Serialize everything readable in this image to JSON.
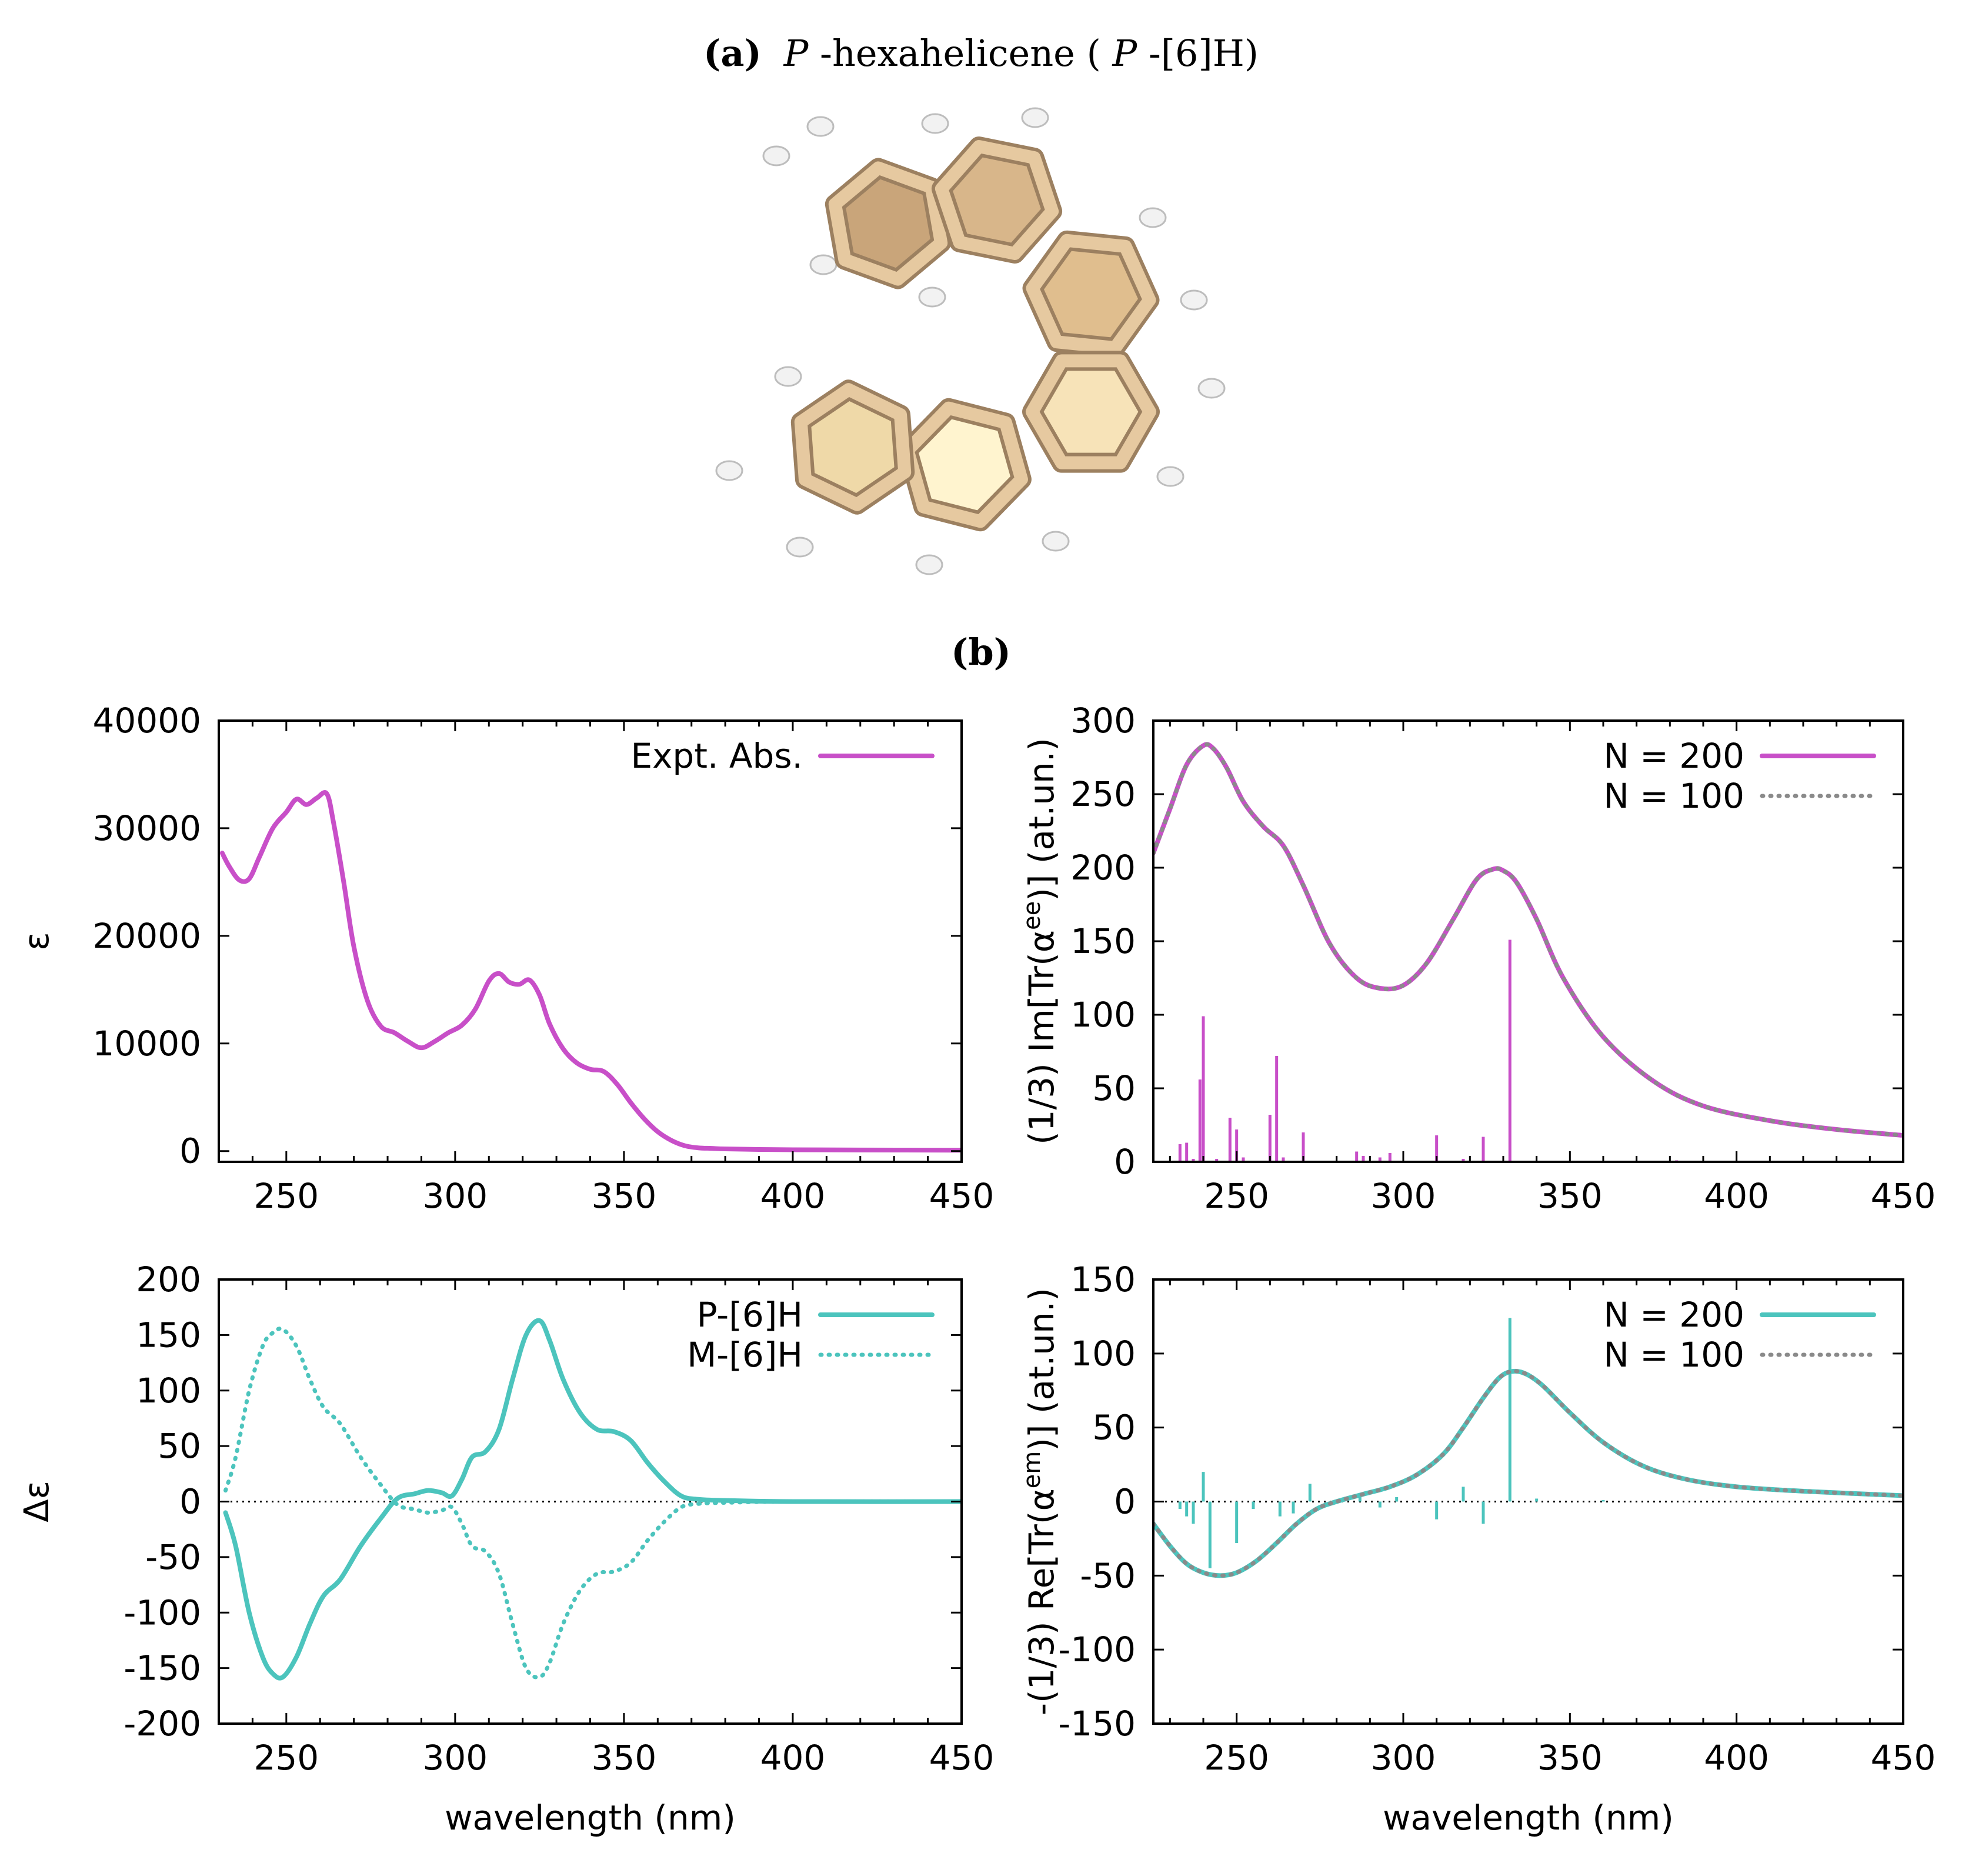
{
  "panel_a": {
    "label": "(a)",
    "title_italic_1": "P",
    "title_mid": "-hexahelicene (",
    "title_italic_2": "P",
    "title_end": "-[6]H)"
  },
  "panel_b": {
    "label": "(b)"
  },
  "colors": {
    "magenta": "#c84fc8",
    "teal": "#4cc4bd",
    "gray": "#8a8a8a",
    "molecule_carbon": "#e6c9a0",
    "molecule_hydrogen": "#f2f2f2"
  },
  "chart_data": [
    {
      "id": "exp-abs",
      "type": "line",
      "title": "",
      "xlabel": "",
      "ylabel": "ε",
      "xlim": [
        230,
        450
      ],
      "ylim": [
        -1000,
        40000
      ],
      "xticks": [
        250,
        300,
        350,
        400,
        450
      ],
      "yticks": [
        0,
        10000,
        20000,
        30000,
        40000
      ],
      "legend_position": "top-right",
      "series": [
        {
          "name": "Expt. Abs.",
          "style": "solid",
          "color": "magenta",
          "x": [
            231,
            233,
            236,
            239,
            242,
            246,
            250,
            253,
            256,
            259,
            262,
            264,
            267,
            270,
            274,
            278,
            282,
            286,
            290,
            294,
            298,
            302,
            306,
            310,
            313,
            316,
            319,
            322,
            325,
            328,
            332,
            336,
            340,
            344,
            348,
            352,
            356,
            360,
            364,
            368,
            372,
            376,
            380,
            390,
            400,
            420,
            450
          ],
          "values": [
            27700,
            26500,
            25200,
            25300,
            27300,
            30000,
            31500,
            32700,
            32200,
            32800,
            33200,
            30500,
            25000,
            19000,
            14000,
            11600,
            11000,
            10200,
            9600,
            10200,
            11000,
            11700,
            13200,
            15800,
            16500,
            15700,
            15500,
            15900,
            14500,
            11800,
            9500,
            8200,
            7600,
            7400,
            6200,
            4500,
            3000,
            1800,
            1000,
            500,
            300,
            250,
            200,
            150,
            120,
            100,
            80
          ]
        }
      ],
      "sticks": []
    },
    {
      "id": "calc-abs",
      "type": "line",
      "title": "",
      "xlabel": "",
      "ylabel": "(1/3) Im[Tr(α^ee)] (at.un.)",
      "xlim": [
        225,
        450
      ],
      "ylim": [
        0,
        300
      ],
      "xticks": [
        250,
        300,
        350,
        400,
        450
      ],
      "yticks": [
        0,
        50,
        100,
        150,
        200,
        250,
        300
      ],
      "legend_position": "top-right",
      "series": [
        {
          "name": "N = 200",
          "style": "solid",
          "color": "magenta",
          "x": [
            225,
            230,
            235,
            240,
            243,
            247,
            252,
            258,
            264,
            270,
            278,
            286,
            293,
            300,
            307,
            315,
            322,
            327,
            330,
            334,
            340,
            348,
            360,
            375,
            390,
            410,
            430,
            450
          ],
          "values": [
            210,
            240,
            270,
            283,
            281,
            268,
            245,
            228,
            215,
            188,
            148,
            125,
            118,
            120,
            135,
            165,
            192,
            199,
            198,
            190,
            165,
            125,
            85,
            55,
            38,
            28,
            22,
            18
          ]
        },
        {
          "name": "N = 100",
          "style": "dotted",
          "color": "gray",
          "x": [
            225,
            230,
            235,
            240,
            243,
            247,
            252,
            258,
            264,
            270,
            278,
            286,
            293,
            300,
            307,
            315,
            322,
            327,
            330,
            334,
            340,
            348,
            360,
            375,
            390,
            410,
            430,
            450
          ],
          "values": [
            210,
            240,
            270,
            283,
            281,
            268,
            245,
            228,
            215,
            188,
            148,
            125,
            118,
            120,
            135,
            165,
            192,
            199,
            198,
            190,
            165,
            125,
            85,
            55,
            38,
            28,
            22,
            18
          ]
        }
      ],
      "sticks": {
        "color": "magenta",
        "x": [
          233,
          235,
          237,
          239,
          240,
          244,
          248,
          250,
          252,
          260,
          262,
          264,
          270,
          286,
          288,
          293,
          296,
          310,
          318,
          324,
          332,
          382
        ],
        "values": [
          12,
          13,
          2,
          56,
          99,
          2,
          30,
          22,
          3,
          32,
          72,
          3,
          20,
          7,
          4,
          3,
          6,
          18,
          2,
          17,
          151,
          1
        ]
      }
    },
    {
      "id": "exp-cd",
      "type": "line",
      "title": "",
      "xlabel": "wavelength (nm)",
      "ylabel": "Δε",
      "xlim": [
        230,
        450
      ],
      "ylim": [
        -200,
        200
      ],
      "xticks": [
        250,
        300,
        350,
        400,
        450
      ],
      "yticks": [
        -200,
        -150,
        -100,
        -50,
        0,
        50,
        100,
        150,
        200
      ],
      "zero_line": true,
      "legend_position": "top-right",
      "series": [
        {
          "name": "P-[6]H",
          "style": "solid",
          "color": "teal",
          "x": [
            232,
            235,
            239,
            243,
            246,
            249,
            253,
            257,
            261,
            266,
            272,
            278,
            283,
            288,
            292,
            296,
            299,
            302,
            305,
            309,
            313,
            317,
            321,
            325,
            328,
            332,
            337,
            342,
            347,
            352,
            357,
            362,
            367,
            372,
            380,
            400,
            450
          ],
          "values": [
            -10,
            -40,
            -100,
            -140,
            -155,
            -158,
            -140,
            -110,
            -85,
            -70,
            -40,
            -15,
            3,
            7,
            10,
            8,
            5,
            20,
            40,
            45,
            65,
            110,
            150,
            163,
            145,
            110,
            80,
            65,
            63,
            55,
            35,
            18,
            5,
            2,
            1,
            0,
            0
          ]
        },
        {
          "name": "M-[6]H",
          "style": "dotted",
          "color": "teal",
          "x": [
            232,
            235,
            239,
            243,
            246,
            249,
            253,
            257,
            261,
            266,
            272,
            278,
            283,
            288,
            292,
            296,
            299,
            302,
            305,
            309,
            313,
            317,
            321,
            325,
            328,
            332,
            337,
            342,
            347,
            352,
            357,
            362,
            367,
            372,
            380,
            400,
            450
          ],
          "values": [
            10,
            40,
            100,
            140,
            152,
            155,
            140,
            110,
            85,
            70,
            40,
            15,
            -3,
            -7,
            -10,
            -8,
            -5,
            -20,
            -40,
            -45,
            -65,
            -110,
            -150,
            -158,
            -145,
            -110,
            -80,
            -65,
            -63,
            -55,
            -35,
            -18,
            -5,
            -2,
            -1,
            0,
            0
          ]
        }
      ],
      "sticks": []
    },
    {
      "id": "calc-cd",
      "type": "line",
      "title": "",
      "xlabel": "wavelength (nm)",
      "ylabel": "-(1/3) Re[Tr(α^em)] (at.un.)",
      "xlim": [
        225,
        450
      ],
      "ylim": [
        -150,
        150
      ],
      "xticks": [
        250,
        300,
        350,
        400,
        450
      ],
      "yticks": [
        -150,
        -100,
        -50,
        0,
        50,
        100,
        150
      ],
      "zero_line": true,
      "legend_position": "top-right",
      "series": [
        {
          "name": "N = 200",
          "style": "solid",
          "color": "teal",
          "x": [
            225,
            230,
            235,
            240,
            245,
            250,
            256,
            262,
            268,
            274,
            280,
            288,
            296,
            304,
            312,
            318,
            324,
            329,
            333,
            337,
            342,
            350,
            360,
            372,
            385,
            400,
            420,
            450
          ],
          "values": [
            -15,
            -30,
            -42,
            -48,
            -50,
            -48,
            -40,
            -28,
            -15,
            -5,
            0,
            5,
            10,
            18,
            32,
            50,
            70,
            84,
            88,
            86,
            78,
            60,
            40,
            24,
            15,
            10,
            7,
            4
          ]
        },
        {
          "name": "N = 100",
          "style": "dotted",
          "color": "gray",
          "x": [
            225,
            230,
            235,
            240,
            245,
            250,
            256,
            262,
            268,
            274,
            280,
            288,
            296,
            304,
            312,
            318,
            324,
            329,
            333,
            337,
            342,
            350,
            360,
            372,
            385,
            400,
            420,
            450
          ],
          "values": [
            -15,
            -30,
            -42,
            -48,
            -50,
            -48,
            -40,
            -28,
            -15,
            -5,
            0,
            5,
            10,
            18,
            32,
            50,
            70,
            84,
            88,
            86,
            78,
            60,
            40,
            24,
            15,
            10,
            7,
            4
          ]
        }
      ],
      "sticks": {
        "color": "teal",
        "x": [
          233,
          235,
          237,
          240,
          242,
          250,
          255,
          263,
          267,
          272,
          287,
          293,
          298,
          310,
          318,
          324,
          332,
          340,
          360
        ],
        "values": [
          -5,
          -10,
          -15,
          20,
          -45,
          -28,
          -5,
          -10,
          -8,
          12,
          3,
          -4,
          3,
          -12,
          10,
          -15,
          124,
          2,
          1
        ]
      }
    }
  ]
}
